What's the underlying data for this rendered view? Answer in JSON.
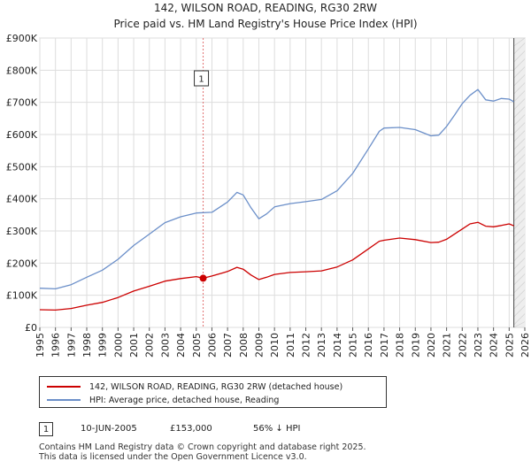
{
  "chart_data": {
    "type": "line",
    "title": "142, WILSON ROAD, READING, RG30 2RW",
    "subtitle": "Price paid vs. HM Land Registry's House Price Index (HPI)",
    "xlabel": "",
    "ylabel": "",
    "xlim": [
      1995,
      2026
    ],
    "ylim": [
      0,
      900000
    ],
    "y_ticks": [
      0,
      100000,
      200000,
      300000,
      400000,
      500000,
      600000,
      700000,
      800000,
      900000
    ],
    "y_tick_labels": [
      "£0",
      "£100K",
      "£200K",
      "£300K",
      "£400K",
      "£500K",
      "£600K",
      "£700K",
      "£800K",
      "£900K"
    ],
    "x_ticks": [
      "1995",
      "1996",
      "1997",
      "1998",
      "1999",
      "2000",
      "2001",
      "2002",
      "2003",
      "2004",
      "2005",
      "2006",
      "2007",
      "2008",
      "2009",
      "2010",
      "2011",
      "2012",
      "2013",
      "2014",
      "2015",
      "2016",
      "2017",
      "2018",
      "2019",
      "2020",
      "2021",
      "2022",
      "2023",
      "2024",
      "2025",
      "2026"
    ],
    "grid": true,
    "series": [
      {
        "name": "142, WILSON ROAD, READING, RG30 2RW (detached house)",
        "color": "#cc0000",
        "x": [
          1995.0,
          1996.0,
          1997.0,
          1998.0,
          1999.0,
          2000.0,
          2001.0,
          2002.0,
          2003.0,
          2004.0,
          2005.0,
          2005.44,
          2006.0,
          2007.0,
          2007.6,
          2008.0,
          2008.5,
          2009.0,
          2009.5,
          2010.0,
          2011.0,
          2012.0,
          2013.0,
          2014.0,
          2015.0,
          2016.0,
          2016.7,
          2017.0,
          2018.0,
          2019.0,
          2020.0,
          2020.5,
          2021.0,
          2021.5,
          2022.0,
          2022.5,
          2023.0,
          2023.5,
          2024.0,
          2024.5,
          2025.0,
          2025.3
        ],
        "y": [
          55000,
          54000,
          59000,
          69000,
          78000,
          93000,
          113000,
          128000,
          144000,
          152000,
          158000,
          153000,
          160000,
          174000,
          187000,
          181000,
          163000,
          149000,
          156000,
          165000,
          171000,
          173000,
          176000,
          188000,
          210000,
          244000,
          268000,
          271000,
          278000,
          273000,
          264000,
          265000,
          274000,
          290000,
          306000,
          322000,
          327000,
          315000,
          313000,
          317000,
          322000,
          316000
        ]
      },
      {
        "name": "HPI: Average price, detached house, Reading",
        "color": "#6b8fc9",
        "x": [
          1995.0,
          1996.0,
          1997.0,
          1998.0,
          1999.0,
          2000.0,
          2001.0,
          2002.0,
          2003.0,
          2004.0,
          2005.0,
          2006.0,
          2007.0,
          2007.6,
          2008.0,
          2008.5,
          2009.0,
          2009.5,
          2010.0,
          2011.0,
          2012.0,
          2013.0,
          2014.0,
          2015.0,
          2016.0,
          2016.7,
          2017.0,
          2018.0,
          2019.0,
          2020.0,
          2020.5,
          2021.0,
          2021.5,
          2022.0,
          2022.5,
          2023.0,
          2023.5,
          2024.0,
          2024.5,
          2025.0,
          2025.3
        ],
        "y": [
          122000,
          120000,
          133000,
          156000,
          178000,
          212000,
          255000,
          290000,
          326000,
          344000,
          356000,
          358000,
          390000,
          420000,
          412000,
          372000,
          338000,
          353000,
          375000,
          385000,
          391000,
          398000,
          425000,
          479000,
          555000,
          610000,
          620000,
          622000,
          615000,
          596000,
          598000,
          625000,
          660000,
          696000,
          722000,
          740000,
          708000,
          704000,
          712000,
          710000,
          702000
        ]
      }
    ],
    "annotations": [
      {
        "label": "1",
        "x": 2005.44,
        "y": 153000
      }
    ],
    "sale_end_marker_x": 2025.3
  },
  "chart_labels": {
    "marker_box": "1"
  },
  "legend": {
    "property_label": "142, WILSON ROAD, READING, RG30 2RW (detached house)",
    "hpi_label": "HPI: Average price, detached house, Reading"
  },
  "annotation_table": [
    {
      "num": "1",
      "date": "10-JUN-2005",
      "price": "£153,000",
      "delta": "56% ↓ HPI"
    }
  ],
  "footer": {
    "line1": "Contains HM Land Registry data © Crown copyright and database right 2025.",
    "line2": "This data is licensed under the Open Government Licence v3.0."
  }
}
